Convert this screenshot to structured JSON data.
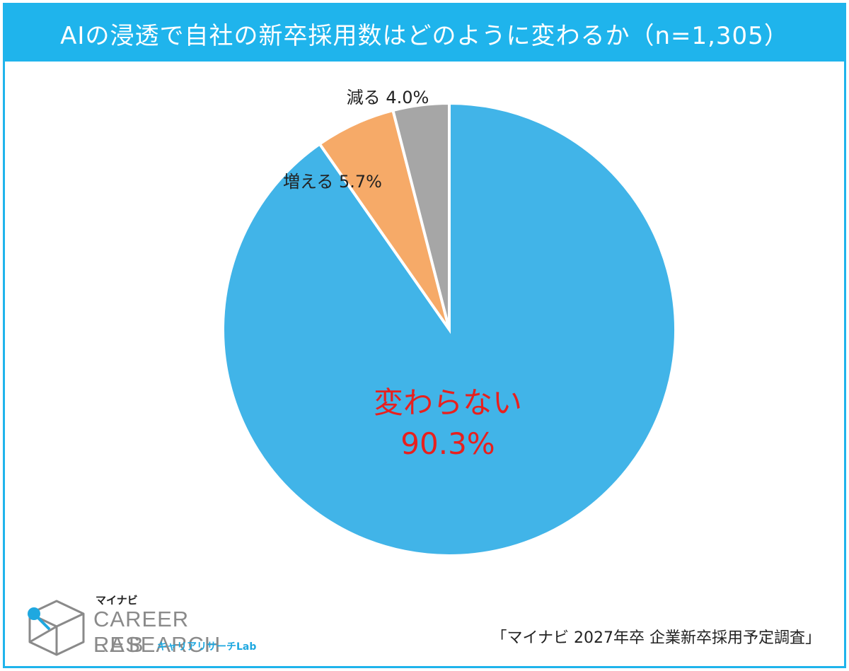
{
  "title": "AIの浸透で自社の新卒採用数はどのように変わるか（n=1,305）",
  "chart_data": {
    "type": "pie",
    "title": "AIの浸透で自社の新卒採用数はどのように変わるか（n=1,305）",
    "slices": [
      {
        "label": "変わらない",
        "value": 90.3,
        "value_label": "90.3%",
        "color": "#41b4e8",
        "label_color": "#e8201e"
      },
      {
        "label": "増える",
        "value": 5.7,
        "value_label": "5.7%",
        "color": "#f6aa68",
        "label_color": "#222222"
      },
      {
        "label": "減る",
        "value": 4.0,
        "value_label": "4.0%",
        "color": "#a6a6a6",
        "label_color": "#222222"
      }
    ],
    "start": "12 o'clock",
    "direction": "clockwise"
  },
  "logo": {
    "kana": "マイナビ",
    "main": "CAREER RESEARCH",
    "lab": "LAB",
    "sub": "キャリアリサーチLab"
  },
  "source": "「マイナビ 2027年卒 企業新卒採用予定調査」",
  "colors": {
    "accent": "#1fb4ec",
    "logo_blue": "#1fa8e0",
    "logo_gray": "#8a8a8a"
  }
}
